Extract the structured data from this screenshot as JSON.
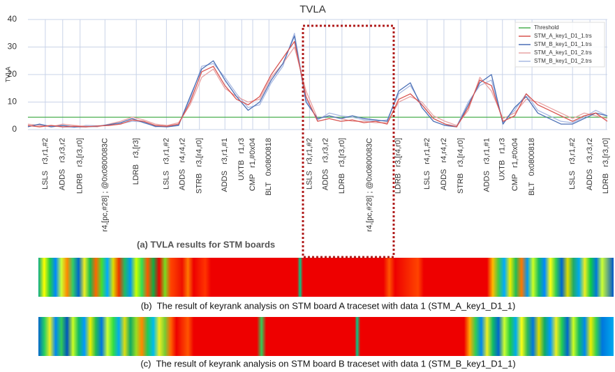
{
  "chart_data": {
    "type": "line",
    "title": "TVLA",
    "y_label": "TVLA",
    "ylim": [
      0,
      40
    ],
    "yticks": [
      0,
      10,
      20,
      30,
      40
    ],
    "xlim": [
      0,
      100
    ],
    "grid": true,
    "xticks": [
      {
        "value": 3,
        "label": "LSLS   r3,r1,#2"
      },
      {
        "value": 6,
        "label": "ADDS   r3,r3,r2"
      },
      {
        "value": 9,
        "label": "LDRB   r3,[r3,r0]"
      },
      {
        "value": 13.3,
        "label": "r4,[pc,#28] ; @0x0800083C"
      },
      {
        "value": 18.7,
        "label": "LDRB   r3,[r3]"
      },
      {
        "value": 23.9,
        "label": "LSLS   r3,r1,#2"
      },
      {
        "value": 26.7,
        "label": "ADDS   r4,r4,r2"
      },
      {
        "value": 29.6,
        "label": "STRB   r3,[r4,r0]"
      },
      {
        "value": 34,
        "label": "ADDS   r3,r1,#1"
      },
      {
        "value": 36.9,
        "label": "UXTB   r1,r3"
      },
      {
        "value": 38.8,
        "label": "CMP   r1,#0x04"
      },
      {
        "value": 41.6,
        "label": "BLT   0x0800818"
      },
      {
        "value": 48.6,
        "label": "LSLS   r3,r1,#2"
      },
      {
        "value": 51.4,
        "label": "ADDS   r3,r3,r2"
      },
      {
        "value": 54.2,
        "label": "LDRB   r3,[r3,r0]"
      },
      {
        "value": 59,
        "label": "r4,[pc,#28] ; @0x0800083C"
      },
      {
        "value": 63.9,
        "label": "LDRB   r3,[r4,r0]"
      },
      {
        "value": 68.9,
        "label": "LSLS   r4,r1,#2"
      },
      {
        "value": 71.8,
        "label": "ADDS   r4,r4,r2"
      },
      {
        "value": 74.7,
        "label": "STRB   r3,[r4,r0]"
      },
      {
        "value": 79.2,
        "label": "ADDS   r3,r1,#1"
      },
      {
        "value": 81.9,
        "label": "UXTB   r1,r3"
      },
      {
        "value": 84.1,
        "label": "CMP   r1,#0x04"
      },
      {
        "value": 87,
        "label": "BLT   0x0800818"
      },
      {
        "value": 94,
        "label": "LSLS   r3,r1,#2"
      },
      {
        "value": 97,
        "label": "ADDS   r3,r3,r2"
      },
      {
        "value": 99.8,
        "label": "LDRB   r3,[r3,r0]"
      }
    ],
    "x": [
      0,
      2,
      4,
      6,
      8,
      10,
      12,
      14,
      16,
      18,
      20,
      22,
      24,
      26,
      28,
      30,
      32,
      34,
      36,
      38,
      40,
      42,
      44,
      46,
      48,
      50,
      52,
      54,
      56,
      58,
      60,
      62,
      64,
      66,
      68,
      70,
      72,
      74,
      76,
      78,
      80,
      82,
      84,
      86,
      88,
      90,
      92,
      94,
      96,
      98,
      100
    ],
    "legend": "upper right",
    "series": [
      {
        "name": "Threshold",
        "color": "#4caf50",
        "x": [
          0,
          100
        ],
        "values": [
          4.5,
          4.5
        ]
      },
      {
        "name": "STM_A_key1_D1_1.trs",
        "color": "#d9534f",
        "values": [
          1.5,
          1,
          1.5,
          1,
          1.2,
          1,
          1.3,
          1.5,
          2,
          3.5,
          3,
          1.5,
          1.2,
          2,
          10,
          21,
          23,
          16,
          11,
          9,
          12,
          20,
          26,
          32,
          12,
          3,
          4,
          3,
          3.5,
          2.5,
          3,
          2,
          11,
          13,
          9,
          4,
          2,
          1,
          8,
          18,
          16,
          3,
          5,
          13,
          9,
          7,
          5,
          3,
          5,
          6,
          3
        ]
      },
      {
        "name": "STM_B_key1_D1_1.trs",
        "color": "#4a6fb5",
        "values": [
          1,
          2,
          1,
          1.5,
          1,
          1,
          1.2,
          1.8,
          2.5,
          4,
          2.5,
          1.2,
          1,
          1.5,
          12,
          22,
          25,
          18,
          12,
          7,
          10,
          18,
          24,
          34,
          10,
          4,
          5,
          4,
          5,
          4,
          3.5,
          3,
          14,
          17,
          8,
          3,
          1.5,
          1,
          9,
          17,
          20,
          2,
          8,
          12,
          6,
          4,
          2,
          2,
          4,
          6,
          5
        ]
      },
      {
        "name": "STM_A_key1_D1_2.trs",
        "color": "#e9a3a3",
        "values": [
          2,
          1.5,
          1,
          2,
          1.5,
          1.2,
          1,
          2,
          3,
          4.5,
          3.5,
          2,
          1.5,
          2.5,
          9,
          19,
          22,
          15,
          12,
          10,
          11,
          19,
          24,
          30,
          14,
          4,
          5,
          4,
          3,
          3,
          2.5,
          2.5,
          10,
          12,
          10,
          5,
          3,
          1.5,
          7,
          19,
          14,
          4,
          6,
          11,
          10,
          8,
          6,
          4,
          6,
          5,
          4
        ]
      },
      {
        "name": "STM_B_key1_D1_2.trs",
        "color": "#a9b9e2",
        "values": [
          1.2,
          1.8,
          1.3,
          1,
          0.8,
          1.5,
          1.4,
          1.6,
          2.2,
          3,
          2.8,
          1,
          1.3,
          1.8,
          11,
          23,
          24,
          19,
          13,
          8,
          9,
          17,
          23,
          35,
          11,
          3.5,
          6,
          5,
          4.5,
          3.5,
          3,
          3.5,
          13,
          16,
          9,
          4,
          2,
          1.2,
          10,
          16,
          18,
          2.5,
          7,
          13,
          7,
          5,
          3,
          2.5,
          4.5,
          7,
          5
        ]
      }
    ]
  },
  "captions": {
    "a": "(a) TVLA results for STM boards",
    "b": "(b)  The result of keyrank analysis on STM board A traceset with data 1 (STM_A_key1_D1_1)",
    "c": "(c)  The result of keyrank analysis on STM board B traceset with data 1 (STM_B_key1_D1_1)"
  }
}
